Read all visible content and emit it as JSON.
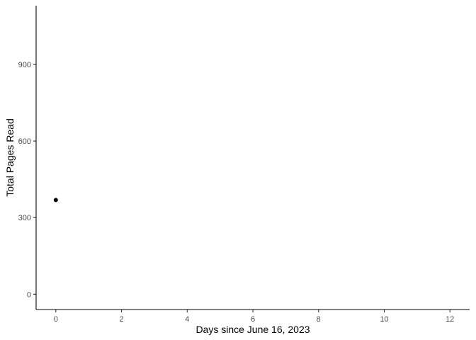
{
  "chart_data": {
    "type": "scatter",
    "title": "",
    "xlabel": "Days since June 16, 2023",
    "ylabel": "Total Pages Read",
    "xlim": [
      -0.6,
      12.6
    ],
    "ylim": [
      -60,
      1130
    ],
    "x_ticks": [
      0,
      2,
      4,
      6,
      8,
      10,
      12
    ],
    "y_ticks": [
      0,
      300,
      600,
      900
    ],
    "grid": false,
    "legend": "none",
    "series": [
      {
        "x": [
          0
        ],
        "y": [
          369
        ]
      }
    ],
    "colors": {
      "point": "#000000",
      "axis": "#000000",
      "tick_text": "#4d4d4d"
    }
  }
}
